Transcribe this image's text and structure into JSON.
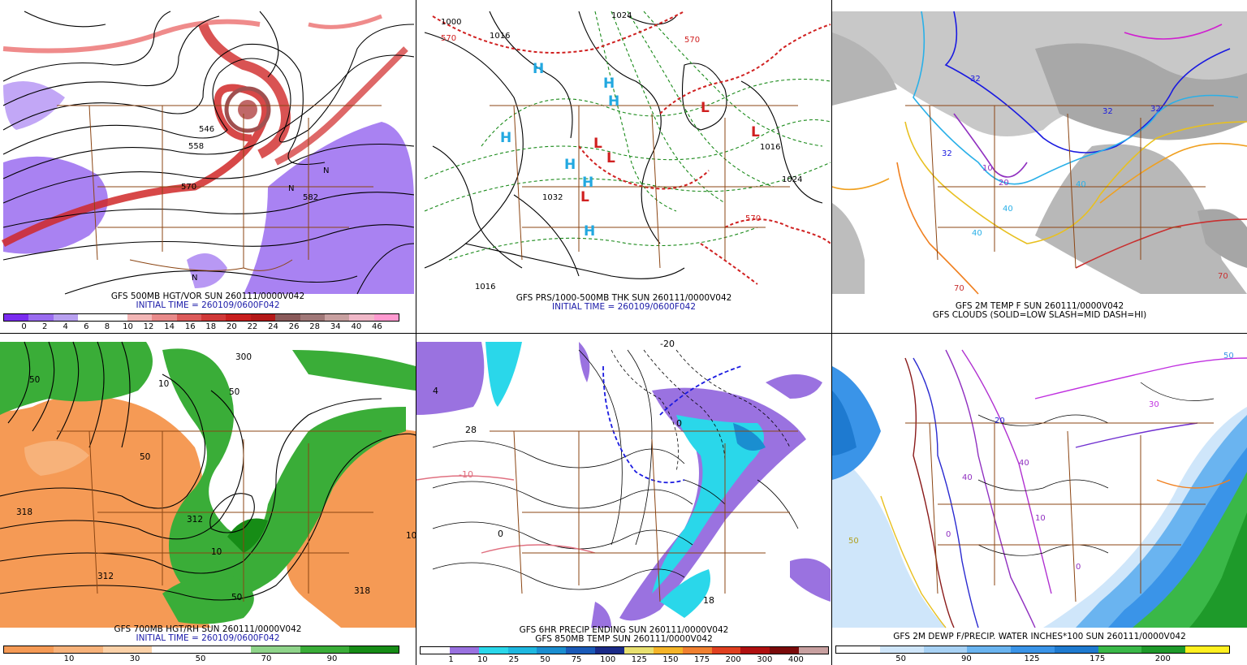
{
  "panels": [
    {
      "id": "p1",
      "caption1": "GFS 500MB HGT/VOR SUN 260111/0000V042",
      "caption2": "INITIAL TIME = 260109/0600F042",
      "colorbar": {
        "colors": [
          "#7a2cf0",
          "#9a6cf0",
          "#b8a0f0",
          "#ffffff",
          "#ffffff",
          "#f2b6b6",
          "#e88a8a",
          "#dc5a5a",
          "#d03838",
          "#c81e1e",
          "#b41818",
          "#8a5a5a",
          "#a07878",
          "#c8a0a0",
          "#f0b8c8",
          "#ff9ad0"
        ],
        "ticks": [
          "0",
          "2",
          "4",
          "6",
          "8",
          "10",
          "12",
          "14",
          "16",
          "18",
          "20",
          "22",
          "24",
          "26",
          "28",
          "34",
          "40",
          "46"
        ]
      },
      "labels": [
        "546",
        "558",
        "570",
        "582",
        "N",
        "N",
        "N"
      ]
    },
    {
      "id": "p2",
      "caption1": "GFS PRS/1000-500MB THK SUN 260111/0000V042",
      "caption2": "INITIAL TIME = 260109/0600F042",
      "labels": [
        "1000",
        "1024",
        "1016",
        "1024",
        "1016",
        "1032",
        "1016",
        "570",
        "570",
        "570",
        "H",
        "H",
        "H",
        "H",
        "H",
        "H",
        "H",
        "L",
        "L",
        "L",
        "L",
        "L"
      ]
    },
    {
      "id": "p3",
      "caption1": "GFS 2M TEMP F SUN 260111/0000V042",
      "caption2": "GFS CLOUDS (SOLID=LOW SLASH=MID DASH=HI)",
      "labels": [
        "32",
        "32",
        "32",
        "32",
        "20",
        "10",
        "40",
        "40",
        "40",
        "70",
        "70"
      ]
    },
    {
      "id": "p4",
      "caption1": "GFS 700MB HGT/RH SUN 260111/0000V042",
      "caption2": "INITIAL TIME = 260109/0600F042",
      "colorbar": {
        "colors": [
          "#f59a55",
          "#f7b27a",
          "#fbd1a8",
          "#ffffff",
          "#ffffff",
          "#8fd48a",
          "#3aad38",
          "#168c16"
        ],
        "ticks": [
          "10",
          "30",
          "50",
          "70",
          "90"
        ]
      },
      "labels": [
        "318",
        "312",
        "312",
        "318",
        "300",
        "50",
        "50",
        "50",
        "10",
        "10",
        "10",
        "50"
      ]
    },
    {
      "id": "p5",
      "caption1": "GFS 6HR PRECIP ENDING SUN 260111/0000V042",
      "caption2": "GFS 850MB TEMP SUN 260111/0000V042",
      "colorbar": {
        "colors": [
          "#ffffff",
          "#9a72e0",
          "#2ad7ea",
          "#1eb8e0",
          "#1a8ed0",
          "#1a5ab8",
          "#1a2a88",
          "#e8e070",
          "#f4b428",
          "#f08030",
          "#e04020",
          "#b01010",
          "#7a0a0a",
          "#c8a0a0"
        ],
        "ticks": [
          "1",
          "10",
          "25",
          "50",
          "75",
          "100",
          "125",
          "150",
          "175",
          "200",
          "300",
          "400"
        ]
      },
      "labels": [
        "4",
        "28",
        "-20",
        "-10",
        "0",
        "0",
        "18"
      ]
    },
    {
      "id": "p6",
      "caption1": "GFS 2M DEWP F/PRECIP. WATER INCHES*100 SUN 260111/0000V042",
      "colorbar": {
        "colors": [
          "#ffffff",
          "#cfe6fa",
          "#a8d2f5",
          "#6ab4f0",
          "#3a94e8",
          "#1e7ad0",
          "#3ab848",
          "#1e9a2a",
          "#fff020"
        ],
        "ticks": [
          "50",
          "90",
          "125",
          "175",
          "200"
        ]
      },
      "labels": [
        "50",
        "50",
        "40",
        "40",
        "30",
        "20",
        "10",
        "0",
        "0"
      ]
    }
  ]
}
